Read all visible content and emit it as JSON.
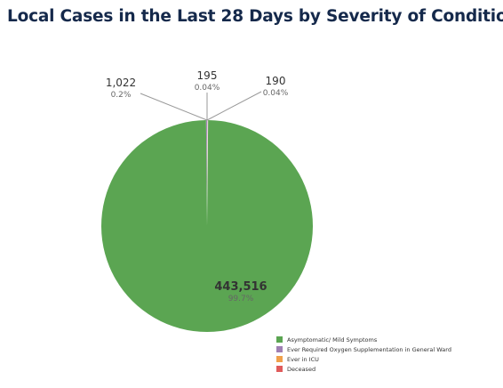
{
  "title": "Local Cases in the Last 28 Days by Severity of Condition",
  "chart_data": {
    "type": "pie",
    "slices": [
      {
        "name": "Asymptomatic/ Mild Symptoms",
        "value": 443516,
        "value_label": "443,516",
        "percent_label": "99.7%",
        "color": "#5ba552"
      },
      {
        "name": "Ever Required Oxygen Supplementation in General Ward",
        "value": 1022,
        "value_label": "1,022",
        "percent_label": "0.2%",
        "color": "#9f7fb3"
      },
      {
        "name": "Ever in ICU",
        "value": 195,
        "value_label": "195",
        "percent_label": "0.04%",
        "color": "#f0a04b"
      },
      {
        "name": "Deceased",
        "value": 190,
        "value_label": "190",
        "percent_label": "0.04%",
        "color": "#e05b5b"
      }
    ],
    "legend_position": "bottom-right"
  }
}
